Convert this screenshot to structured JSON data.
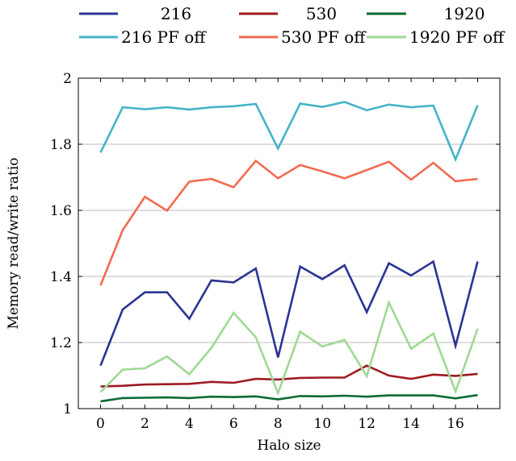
{
  "chart_data": {
    "type": "line",
    "xlabel": "Halo size",
    "ylabel": "Memory read/write ratio",
    "xlim": [
      -1,
      18
    ],
    "ylim": [
      1,
      2
    ],
    "x_ticks": [
      0,
      2,
      4,
      6,
      8,
      10,
      12,
      14,
      16
    ],
    "y_ticks": [
      1,
      1.2,
      1.4,
      1.6,
      1.8,
      2
    ],
    "x_tick_labels": [
      "0",
      "2",
      "4",
      "6",
      "8",
      "10",
      "12",
      "14",
      "16"
    ],
    "y_tick_labels": [
      "1",
      "1.2",
      "1.4",
      "1.6",
      "1.8",
      "2"
    ],
    "grid": "horizontal",
    "legend_position": "top",
    "x": [
      0,
      1,
      2,
      3,
      4,
      5,
      6,
      7,
      8,
      9,
      10,
      11,
      12,
      13,
      14,
      15,
      16,
      17
    ],
    "series": [
      {
        "name": "216",
        "color": "#2b3494",
        "values": [
          1.13,
          1.3,
          1.352,
          1.352,
          1.272,
          1.388,
          1.382,
          1.424,
          1.155,
          1.43,
          1.392,
          1.434,
          1.292,
          1.44,
          1.403,
          1.445,
          1.19,
          1.445
        ]
      },
      {
        "name": "530",
        "color": "#9e1a21",
        "values": [
          1.067,
          1.069,
          1.073,
          1.074,
          1.075,
          1.081,
          1.078,
          1.09,
          1.088,
          1.093,
          1.094,
          1.094,
          1.13,
          1.1,
          1.09,
          1.103,
          1.099,
          1.105
        ]
      },
      {
        "name": "1920",
        "color": "#0a6b32",
        "values": [
          1.022,
          1.032,
          1.033,
          1.034,
          1.032,
          1.036,
          1.035,
          1.037,
          1.028,
          1.038,
          1.037,
          1.039,
          1.036,
          1.04,
          1.04,
          1.04,
          1.031,
          1.041
        ]
      },
      {
        "name": "216 PF off",
        "color": "#45b4c8",
        "values": [
          1.775,
          1.912,
          1.906,
          1.912,
          1.905,
          1.912,
          1.915,
          1.922,
          1.787,
          1.923,
          1.913,
          1.928,
          1.903,
          1.92,
          1.912,
          1.917,
          1.754,
          1.918
        ]
      },
      {
        "name": "530 PF off",
        "color": "#f26b50",
        "values": [
          1.373,
          1.54,
          1.641,
          1.599,
          1.687,
          1.695,
          1.67,
          1.75,
          1.697,
          1.737,
          1.718,
          1.697,
          1.722,
          1.747,
          1.693,
          1.744,
          1.688,
          1.695
        ]
      },
      {
        "name": "1920 PF off",
        "color": "#9fd895",
        "values": [
          1.05,
          1.118,
          1.122,
          1.158,
          1.104,
          1.184,
          1.29,
          1.216,
          1.047,
          1.233,
          1.188,
          1.208,
          1.098,
          1.321,
          1.181,
          1.227,
          1.052,
          1.242
        ]
      }
    ]
  }
}
